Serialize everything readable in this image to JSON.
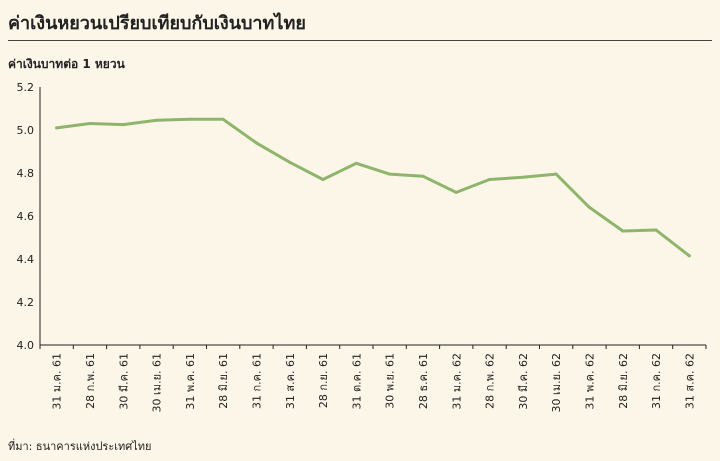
{
  "header": {
    "title": "ค่าเงินหยวนเปรียบเทียบกับเงินบาทไทย",
    "unit": "ค่าเงินบาทต่อ 1 หยวน"
  },
  "footer": {
    "source": "ที่มา: ธนาคารแห่งประเทศไทย"
  },
  "colors": {
    "line": "#8fb56d",
    "axis": "#222222",
    "background": "#fbf6e8"
  },
  "chart_data": {
    "type": "line",
    "title": "ค่าเงินหยวนเปรียบเทียบกับเงินบาทไทย",
    "ylabel": "ค่าเงินบาทต่อ 1 หยวน",
    "xlabel": "",
    "ylim": [
      4.0,
      5.2
    ],
    "yticks": [
      "4.0",
      "4.2",
      "4.4",
      "4.6",
      "4.8",
      "5.0",
      "5.2"
    ],
    "grid": false,
    "categories": [
      "31 ม.ค. 61",
      "28 ก.พ. 61",
      "30 มี.ค. 61",
      "30 เม.ย. 61",
      "31 พ.ค. 61",
      "28 มิ.ย. 61",
      "31 ก.ค. 61",
      "31 ส.ค. 61",
      "28 ก.ย. 61",
      "31 ต.ค. 61",
      "30 พ.ย. 61",
      "28 ธ.ค. 61",
      "31 ม.ค. 62",
      "28 ก.พ. 62",
      "30 มี.ค. 62",
      "30 เม.ย. 62",
      "31 พ.ค. 62",
      "28 มิ.ย. 62",
      "31 ก.ค. 62",
      "31 ส.ค. 62"
    ],
    "series": [
      {
        "values": [
          5.01,
          5.03,
          5.025,
          5.045,
          5.05,
          5.05,
          4.94,
          4.85,
          4.77,
          4.845,
          4.795,
          4.785,
          4.71,
          4.77,
          4.78,
          4.795,
          4.64,
          4.53,
          4.535,
          4.415
        ]
      }
    ]
  }
}
